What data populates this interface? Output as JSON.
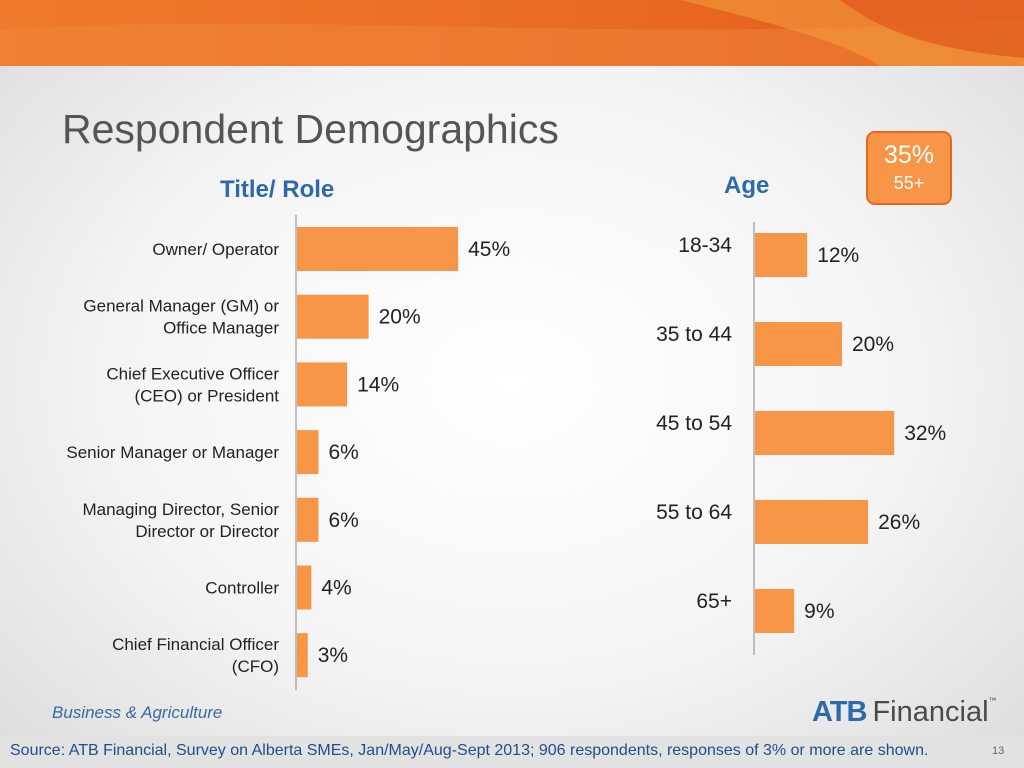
{
  "slide": {
    "title": "Respondent Demographics",
    "segment_label": "Business & Agriculture",
    "logo": {
      "brand": "ATB",
      "word": "Financial",
      "tm": "™"
    },
    "source": "Source: ATB Financial, Survey on Alberta SMEs, Jan/May/Aug-Sept 2013; 906 respondents, responses of 3% or more are shown.",
    "page_number": "13",
    "callout": {
      "value": "35%",
      "label": "55+"
    },
    "colors": {
      "bar": "#f79646",
      "heading": "#2e6aa8",
      "banner": "#e8671f"
    }
  },
  "chart_data": [
    {
      "type": "bar",
      "orientation": "horizontal",
      "title": "Title/ Role",
      "categories": [
        [
          "Owner/ Operator"
        ],
        [
          "General Manager (GM) or",
          "Office Manager"
        ],
        [
          "Chief Executive Officer",
          "(CEO) or President"
        ],
        [
          "Senior Manager or Manager"
        ],
        [
          "Managing Director, Senior",
          "Director or Director"
        ],
        [
          "Controller"
        ],
        [
          "Chief Financial Officer",
          "(CFO)"
        ]
      ],
      "values": [
        45,
        20,
        14,
        6,
        6,
        4,
        3
      ],
      "value_labels": [
        "45%",
        "20%",
        "14%",
        "6%",
        "6%",
        "4%",
        "3%"
      ],
      "unit": "%"
    },
    {
      "type": "bar",
      "orientation": "horizontal",
      "title": "Age",
      "categories": [
        [
          "18-34"
        ],
        [
          "35 to 44"
        ],
        [
          "45 to 54"
        ],
        [
          "55 to 64"
        ],
        [
          "65+"
        ]
      ],
      "values": [
        12,
        20,
        32,
        26,
        9
      ],
      "value_labels": [
        "12%",
        "20%",
        "32%",
        "26%",
        "9%"
      ],
      "unit": "%"
    }
  ]
}
